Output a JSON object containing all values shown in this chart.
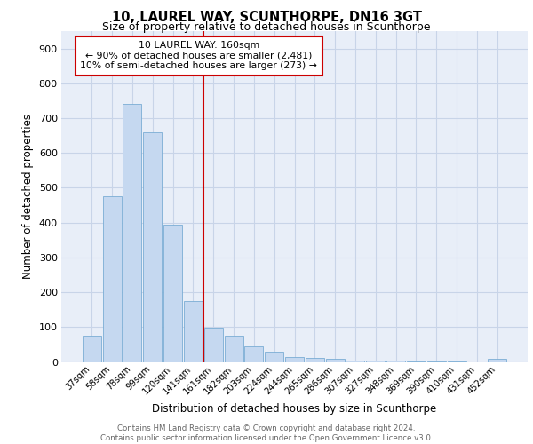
{
  "title1": "10, LAUREL WAY, SCUNTHORPE, DN16 3GT",
  "title2": "Size of property relative to detached houses in Scunthorpe",
  "xlabel": "Distribution of detached houses by size in Scunthorpe",
  "ylabel": "Number of detached properties",
  "categories": [
    "37sqm",
    "58sqm",
    "78sqm",
    "99sqm",
    "120sqm",
    "141sqm",
    "161sqm",
    "182sqm",
    "203sqm",
    "224sqm",
    "244sqm",
    "265sqm",
    "286sqm",
    "307sqm",
    "327sqm",
    "348sqm",
    "369sqm",
    "390sqm",
    "410sqm",
    "431sqm",
    "452sqm"
  ],
  "values": [
    75,
    475,
    742,
    660,
    393,
    175,
    98,
    75,
    44,
    30,
    15,
    12,
    10,
    5,
    4,
    3,
    2,
    1,
    1,
    0,
    8
  ],
  "bar_color": "#c5d8f0",
  "bar_edge_color": "#7aadd4",
  "vline_color": "#cc0000",
  "annotation_text": "10 LAUREL WAY: 160sqm\n← 90% of detached houses are smaller (2,481)\n10% of semi-detached houses are larger (273) →",
  "annotation_box_color": "#ffffff",
  "annotation_box_edge": "#cc0000",
  "grid_color": "#c8d4e8",
  "background_color": "#e8eef8",
  "footer": "Contains HM Land Registry data © Crown copyright and database right 2024.\nContains public sector information licensed under the Open Government Licence v3.0.",
  "ylim": [
    0,
    950
  ],
  "yticks": [
    0,
    100,
    200,
    300,
    400,
    500,
    600,
    700,
    800,
    900
  ]
}
